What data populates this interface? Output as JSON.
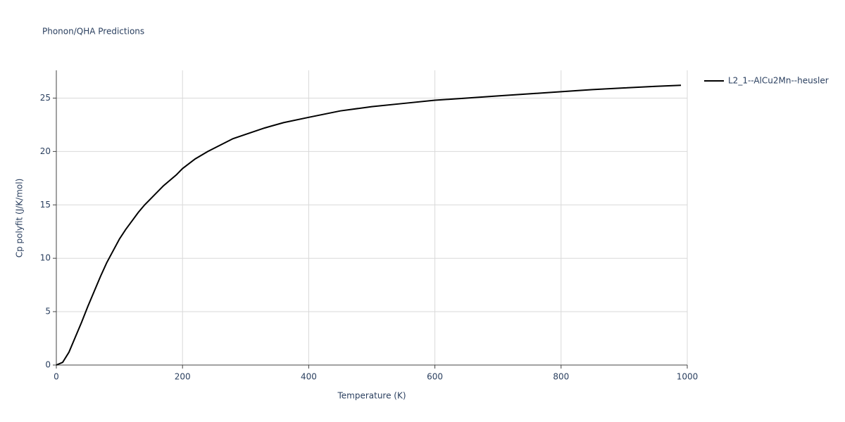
{
  "chart_data": {
    "type": "line",
    "title": "Phonon/QHA Predictions",
    "x_label": "Temperature (K)",
    "y_label": "Cp polyfit (J/K/mol)",
    "x": [
      0,
      10,
      20,
      30,
      40,
      50,
      60,
      70,
      80,
      90,
      100,
      110,
      120,
      130,
      140,
      150,
      160,
      170,
      180,
      190,
      200,
      220,
      240,
      260,
      280,
      300,
      330,
      360,
      400,
      450,
      500,
      550,
      600,
      650,
      700,
      750,
      800,
      850,
      900,
      950,
      990
    ],
    "series": [
      {
        "name": "L2_1--AlCu2Mn--heusler",
        "color": "#000000",
        "values": [
          0,
          0.25,
          1.2,
          2.6,
          4.0,
          5.5,
          6.9,
          8.3,
          9.6,
          10.7,
          11.8,
          12.7,
          13.5,
          14.3,
          15.0,
          15.6,
          16.2,
          16.8,
          17.3,
          17.8,
          18.4,
          19.3,
          20.0,
          20.6,
          21.2,
          21.6,
          22.2,
          22.7,
          23.2,
          23.8,
          24.2,
          24.5,
          24.8,
          25.0,
          25.2,
          25.4,
          25.6,
          25.8,
          25.95,
          26.1,
          26.2
        ]
      }
    ],
    "xlim": [
      0,
      1000
    ],
    "xticks": [
      0,
      200,
      400,
      600,
      800,
      1000
    ],
    "ylim": [
      0,
      27.6
    ],
    "yticks": [
      0,
      5,
      10,
      15,
      20,
      25
    ],
    "grid": true
  }
}
